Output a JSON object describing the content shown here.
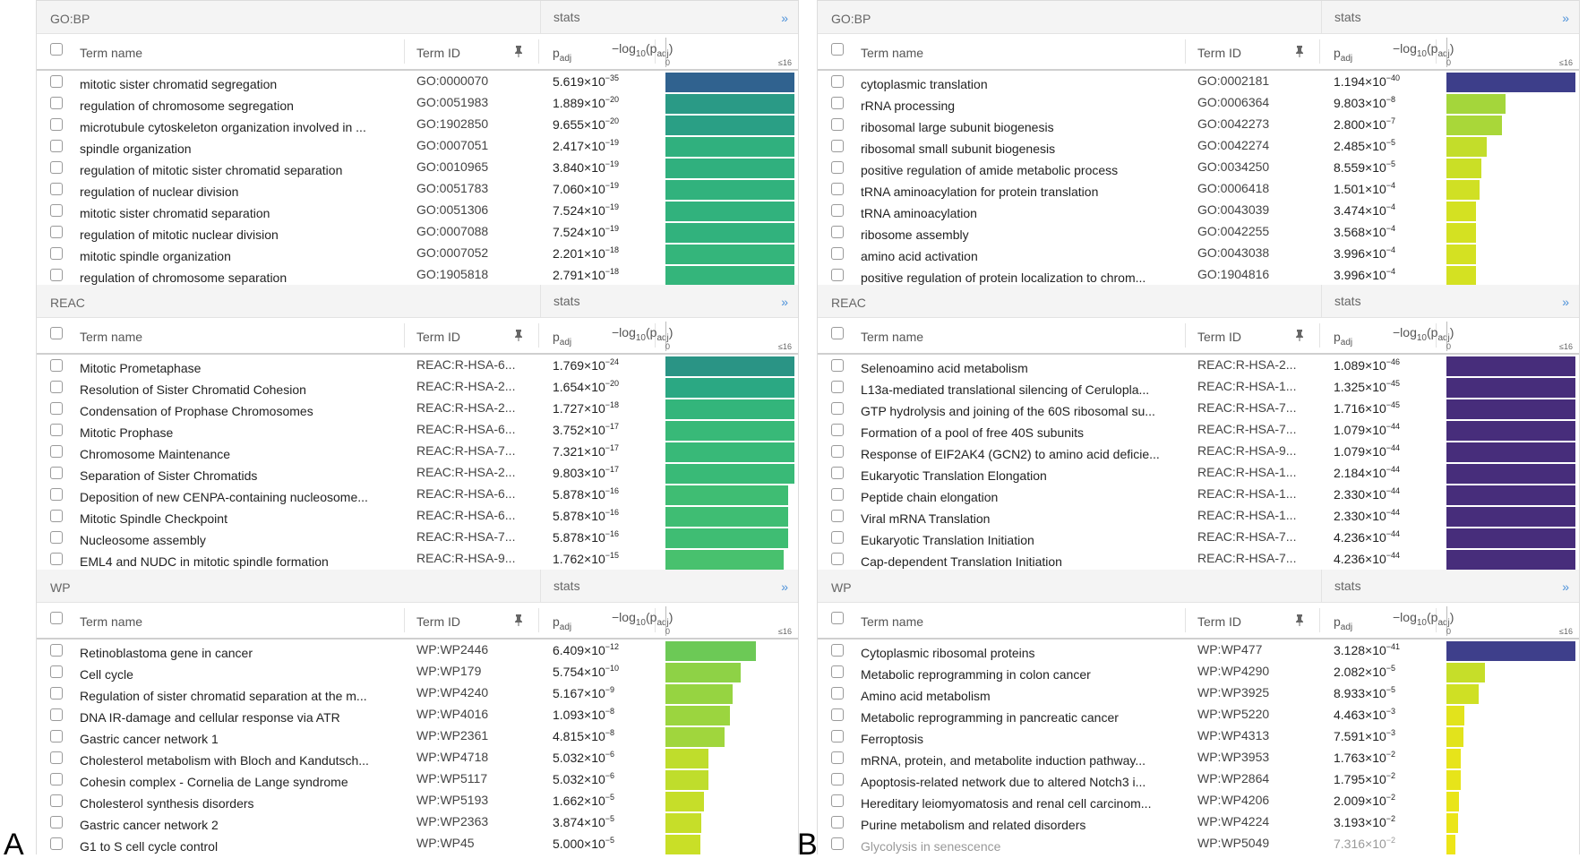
{
  "labels": {
    "stats": "stats",
    "expand": "»",
    "term_name": "Term name",
    "term_id": "Term ID",
    "padj_base": "p",
    "padj_sub": "adj",
    "log_prefix": "−log",
    "log_sub": "10",
    "log_paren_open": "(p",
    "log_paren_sub": "adj",
    "log_paren_close": ")",
    "scale_min": "0",
    "scale_max": "≤16"
  },
  "panels": [
    {
      "letter": "A",
      "sections": [
        {
          "name": "GO:BP",
          "rows": [
            {
              "term": "mitotic sister chromatid segregation",
              "id": "GO:0000070",
              "mant": "5.619×10",
              "exp": "−35",
              "level": 1.0,
              "color": "#30628f"
            },
            {
              "term": "regulation of chromosome segregation",
              "id": "GO:0051983",
              "mant": "1.889×10",
              "exp": "−20",
              "level": 1.0,
              "color": "#2a9a86"
            },
            {
              "term": "microtubule cytoskeleton organization involved in ...",
              "id": "GO:1902850",
              "mant": "9.655×10",
              "exp": "−20",
              "level": 1.0,
              "color": "#2a9f85"
            },
            {
              "term": "spindle organization",
              "id": "GO:0007051",
              "mant": "2.417×10",
              "exp": "−19",
              "level": 1.0,
              "color": "#30b07e"
            },
            {
              "term": "regulation of mitotic sister chromatid separation",
              "id": "GO:0010965",
              "mant": "3.840×10",
              "exp": "−19",
              "level": 1.0,
              "color": "#30b07e"
            },
            {
              "term": "regulation of nuclear division",
              "id": "GO:0051783",
              "mant": "7.060×10",
              "exp": "−19",
              "level": 1.0,
              "color": "#31b27d"
            },
            {
              "term": "mitotic sister chromatid separation",
              "id": "GO:0051306",
              "mant": "7.524×10",
              "exp": "−19",
              "level": 1.0,
              "color": "#31b27d"
            },
            {
              "term": "regulation of mitotic nuclear division",
              "id": "GO:0007088",
              "mant": "7.524×10",
              "exp": "−19",
              "level": 1.0,
              "color": "#31b27d"
            },
            {
              "term": "mitotic spindle organization",
              "id": "GO:0007052",
              "mant": "2.201×10",
              "exp": "−18",
              "level": 1.0,
              "color": "#34b57b"
            },
            {
              "term": "regulation of chromosome separation",
              "id": "GO:1905818",
              "mant": "2.791×10",
              "exp": "−18",
              "level": 1.0,
              "color": "#34b57b"
            }
          ]
        },
        {
          "name": "REAC",
          "rows": [
            {
              "term": "Mitotic Prometaphase",
              "id": "REAC:R-HSA-6...",
              "mant": "1.769×10",
              "exp": "−24",
              "level": 1.0,
              "color": "#2a9485"
            },
            {
              "term": "Resolution of Sister Chromatid Cohesion",
              "id": "REAC:R-HSA-2...",
              "mant": "1.654×10",
              "exp": "−20",
              "level": 1.0,
              "color": "#2ba883"
            },
            {
              "term": "Condensation of Prophase Chromosomes",
              "id": "REAC:R-HSA-2...",
              "mant": "1.727×10",
              "exp": "−18",
              "level": 1.0,
              "color": "#33b57b"
            },
            {
              "term": "Mitotic Prophase",
              "id": "REAC:R-HSA-6...",
              "mant": "3.752×10",
              "exp": "−17",
              "level": 1.0,
              "color": "#38b978"
            },
            {
              "term": "Chromosome Maintenance",
              "id": "REAC:R-HSA-7...",
              "mant": "7.321×10",
              "exp": "−17",
              "level": 1.0,
              "color": "#38b978"
            },
            {
              "term": "Separation of Sister Chromatids",
              "id": "REAC:R-HSA-2...",
              "mant": "9.803×10",
              "exp": "−17",
              "level": 1.0,
              "color": "#39ba77"
            },
            {
              "term": "Deposition of new CENPA-containing nucleosome...",
              "id": "REAC:R-HSA-6...",
              "mant": "5.878×10",
              "exp": "−16",
              "level": 0.95,
              "color": "#3fbd73"
            },
            {
              "term": "Mitotic Spindle Checkpoint",
              "id": "REAC:R-HSA-6...",
              "mant": "5.878×10",
              "exp": "−16",
              "level": 0.95,
              "color": "#3fbd73"
            },
            {
              "term": "Nucleosome assembly",
              "id": "REAC:R-HSA-7...",
              "mant": "5.878×10",
              "exp": "−16",
              "level": 0.95,
              "color": "#3fbd73"
            },
            {
              "term": "EML4 and NUDC in mitotic spindle formation",
              "id": "REAC:R-HSA-9...",
              "mant": "1.762×10",
              "exp": "−15",
              "level": 0.92,
              "color": "#48c16e"
            }
          ]
        },
        {
          "name": "WP",
          "rows": [
            {
              "term": "Retinoblastoma gene in cancer",
              "id": "WP:WP2446",
              "mant": "6.409×10",
              "exp": "−12",
              "level": 0.7,
              "color": "#6cc956"
            },
            {
              "term": "Cell cycle",
              "id": "WP:WP179",
              "mant": "5.754×10",
              "exp": "−10",
              "level": 0.58,
              "color": "#8ed246"
            },
            {
              "term": "Regulation of sister chromatid separation at the m...",
              "id": "WP:WP4240",
              "mant": "5.167×10",
              "exp": "−9",
              "level": 0.52,
              "color": "#96d441"
            },
            {
              "term": "DNA IR-damage and cellular response via ATR",
              "id": "WP:WP4016",
              "mant": "1.093×10",
              "exp": "−8",
              "level": 0.5,
              "color": "#9bd53f"
            },
            {
              "term": "Gastric cancer network 1",
              "id": "WP:WP2361",
              "mant": "4.815×10",
              "exp": "−8",
              "level": 0.46,
              "color": "#a0d63d"
            },
            {
              "term": "Cholesterol metabolism with Bloch and Kandutsch...",
              "id": "WP:WP4718",
              "mant": "5.032×10",
              "exp": "−6",
              "level": 0.33,
              "color": "#bfdd2c"
            },
            {
              "term": "Cohesin complex - Cornelia de Lange syndrome",
              "id": "WP:WP5117",
              "mant": "5.032×10",
              "exp": "−6",
              "level": 0.33,
              "color": "#bfdd2c"
            },
            {
              "term": "Cholesterol synthesis disorders",
              "id": "WP:WP5193",
              "mant": "1.662×10",
              "exp": "−5",
              "level": 0.3,
              "color": "#c6de29"
            },
            {
              "term": "Gastric cancer network 2",
              "id": "WP:WP2363",
              "mant": "3.874×10",
              "exp": "−5",
              "level": 0.28,
              "color": "#c6de29"
            },
            {
              "term": "G1 to S cell cycle control",
              "id": "WP:WP45",
              "mant": "5.000×10",
              "exp": "−5",
              "level": 0.27,
              "color": "#c9df27"
            }
          ]
        }
      ]
    },
    {
      "letter": "B",
      "sections": [
        {
          "name": "GO:BP",
          "rows": [
            {
              "term": "cytoplasmic translation",
              "id": "GO:0002181",
              "mant": "1.194×10",
              "exp": "−40",
              "level": 1.0,
              "color": "#3d3e8a"
            },
            {
              "term": "rRNA processing",
              "id": "GO:0006364",
              "mant": "9.803×10",
              "exp": "−8",
              "level": 0.46,
              "color": "#a4d63b"
            },
            {
              "term": "ribosomal large subunit biogenesis",
              "id": "GO:0042273",
              "mant": "2.800×10",
              "exp": "−7",
              "level": 0.43,
              "color": "#a9d739"
            },
            {
              "term": "ribosomal small subunit biogenesis",
              "id": "GO:0042274",
              "mant": "2.485×10",
              "exp": "−5",
              "level": 0.31,
              "color": "#c3dd2a"
            },
            {
              "term": "positive regulation of amide metabolic process",
              "id": "GO:0034250",
              "mant": "8.559×10",
              "exp": "−5",
              "level": 0.27,
              "color": "#cadf26"
            },
            {
              "term": "tRNA aminoacylation for protein translation",
              "id": "GO:0006418",
              "mant": "1.501×10",
              "exp": "−4",
              "level": 0.26,
              "color": "#d0e024"
            },
            {
              "term": "tRNA aminoacylation",
              "id": "GO:0043039",
              "mant": "3.474×10",
              "exp": "−4",
              "level": 0.23,
              "color": "#d4e122"
            },
            {
              "term": "ribosome assembly",
              "id": "GO:0042255",
              "mant": "3.568×10",
              "exp": "−4",
              "level": 0.23,
              "color": "#d4e122"
            },
            {
              "term": "amino acid activation",
              "id": "GO:0043038",
              "mant": "3.996×10",
              "exp": "−4",
              "level": 0.23,
              "color": "#d4e122"
            },
            {
              "term": "positive regulation of protein localization to chrom...",
              "id": "GO:1904816",
              "mant": "3.996×10",
              "exp": "−4",
              "level": 0.23,
              "color": "#d4e122"
            }
          ]
        },
        {
          "name": "REAC",
          "rows": [
            {
              "term": "Selenoamino acid metabolism",
              "id": "REAC:R-HSA-2...",
              "mant": "1.089×10",
              "exp": "−46",
              "level": 1.0,
              "color": "#472d7b"
            },
            {
              "term": "L13a-mediated translational silencing of Ceruloplа...",
              "id": "REAC:R-HSA-1...",
              "mant": "1.325×10",
              "exp": "−45",
              "level": 1.0,
              "color": "#472d7b"
            },
            {
              "term": "GTP hydrolysis and joining of the 60S ribosomal su...",
              "id": "REAC:R-HSA-7...",
              "mant": "1.716×10",
              "exp": "−45",
              "level": 1.0,
              "color": "#472d7b"
            },
            {
              "term": "Formation of a pool of free 40S subunits",
              "id": "REAC:R-HSA-7...",
              "mant": "1.079×10",
              "exp": "−44",
              "level": 1.0,
              "color": "#472d7b"
            },
            {
              "term": "Response of EIF2AK4 (GCN2) to amino acid deficie...",
              "id": "REAC:R-HSA-9...",
              "mant": "1.079×10",
              "exp": "−44",
              "level": 1.0,
              "color": "#472d7b"
            },
            {
              "term": "Eukaryotic Translation Elongation",
              "id": "REAC:R-HSA-1...",
              "mant": "2.184×10",
              "exp": "−44",
              "level": 1.0,
              "color": "#472d7b"
            },
            {
              "term": "Peptide chain elongation",
              "id": "REAC:R-HSA-1...",
              "mant": "2.330×10",
              "exp": "−44",
              "level": 1.0,
              "color": "#472d7b"
            },
            {
              "term": "Viral mRNA Translation",
              "id": "REAC:R-HSA-1...",
              "mant": "2.330×10",
              "exp": "−44",
              "level": 1.0,
              "color": "#472d7b"
            },
            {
              "term": "Eukaryotic Translation Initiation",
              "id": "REAC:R-HSA-7...",
              "mant": "4.236×10",
              "exp": "−44",
              "level": 1.0,
              "color": "#472d7b"
            },
            {
              "term": "Cap-dependent Translation Initiation",
              "id": "REAC:R-HSA-7...",
              "mant": "4.236×10",
              "exp": "−44",
              "level": 1.0,
              "color": "#472d7b"
            }
          ]
        },
        {
          "name": "WP",
          "rows": [
            {
              "term": "Cytoplasmic ribosomal proteins",
              "id": "WP:WP477",
              "mant": "3.128×10",
              "exp": "−41",
              "level": 1.0,
              "color": "#3e3f8b"
            },
            {
              "term": "Metabolic reprogramming in colon cancer",
              "id": "WP:WP4290",
              "mant": "2.082×10",
              "exp": "−5",
              "level": 0.3,
              "color": "#c6de29"
            },
            {
              "term": "Amino acid metabolism",
              "id": "WP:WP3925",
              "mant": "8.933×10",
              "exp": "−5",
              "level": 0.25,
              "color": "#cfe024"
            },
            {
              "term": "Metabolic reprogramming in pancreatic cancer",
              "id": "WP:WP5220",
              "mant": "4.463×10",
              "exp": "−3",
              "level": 0.14,
              "color": "#e2e31c"
            },
            {
              "term": "Ferroptosis",
              "id": "WP:WP4313",
              "mant": "7.591×10",
              "exp": "−3",
              "level": 0.13,
              "color": "#e2e31c"
            },
            {
              "term": "mRNA, protein, and metabolite induction pathway...",
              "id": "WP:WP3953",
              "mant": "1.763×10",
              "exp": "−2",
              "level": 0.11,
              "color": "#e7e41a"
            },
            {
              "term": "Apoptosis-related network due to altered Notch3 i...",
              "id": "WP:WP2864",
              "mant": "1.795×10",
              "exp": "−2",
              "level": 0.11,
              "color": "#e7e41a"
            },
            {
              "term": "Hereditary leiomyomatosis and renal cell carcinom...",
              "id": "WP:WP4206",
              "mant": "2.009×10",
              "exp": "−2",
              "level": 0.1,
              "color": "#e9e519"
            },
            {
              "term": "Purine metabolism and related disorders",
              "id": "WP:WP4224",
              "mant": "3.193×10",
              "exp": "−2",
              "level": 0.09,
              "color": "#ebe518"
            },
            {
              "term": "Glycolysis in senescence",
              "id": "WP:WP5049",
              "mant": "7.316×10",
              "exp": "−2",
              "level": 0.07,
              "color": "#ede518",
              "faded": true
            }
          ]
        }
      ]
    }
  ]
}
